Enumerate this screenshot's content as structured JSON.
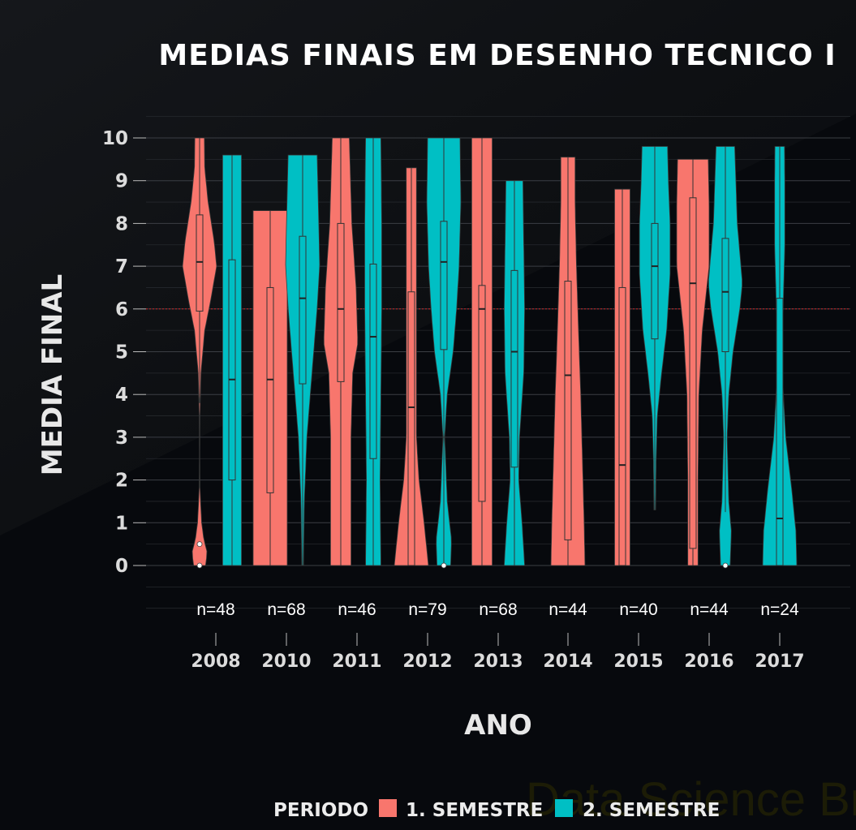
{
  "chart_data": {
    "type": "violin",
    "title": "MEDIAS FINAIS EM DESENHO TECNICO I",
    "xlabel": "ANO",
    "ylabel": "MEDIA FINAL",
    "ylim": [
      0,
      10
    ],
    "yticks": [
      "0",
      "1",
      "2",
      "3",
      "4",
      "5",
      "6",
      "7",
      "8",
      "9",
      "10"
    ],
    "reference_line": {
      "y": 6,
      "color": "#cc2222",
      "style": "dotted"
    },
    "grid": true,
    "legend": {
      "title": "PERIODO",
      "position": "bottom",
      "entries": [
        {
          "label": "1. SEMESTRE",
          "color": "#f8766d"
        },
        {
          "label": "2. SEMESTRE",
          "color": "#00bfc4"
        }
      ]
    },
    "categories": [
      "2008",
      "2010",
      "2011",
      "2012",
      "2013",
      "2014",
      "2015",
      "2016",
      "2017"
    ],
    "counts": [
      "n=48",
      "n=68",
      "n=46",
      "n=79",
      "n=68",
      "n=44",
      "n=40",
      "n=44",
      "n=24"
    ],
    "series": [
      {
        "name": "1. SEMESTRE",
        "groups": [
          {
            "year": "2008",
            "min": 0,
            "max": 10,
            "q1": 5.95,
            "median": 7.1,
            "q3": 8.2,
            "wlow": 3.8,
            "whigh": 10,
            "outliers": [
              0.5,
              0
            ],
            "density": [
              [
                0,
                0.35
              ],
              [
                0.3,
                0.45
              ],
              [
                0.6,
                0.25
              ],
              [
                1,
                0.12
              ],
              [
                1.8,
                0.02
              ],
              [
                2.5,
                0.01
              ],
              [
                3.5,
                0.02
              ],
              [
                4.5,
                0.08
              ],
              [
                5.5,
                0.3
              ],
              [
                6.2,
                0.65
              ],
              [
                7,
                1
              ],
              [
                7.6,
                0.85
              ],
              [
                8.5,
                0.5
              ],
              [
                9.3,
                0.3
              ],
              [
                10,
                0.28
              ]
            ]
          },
          {
            "year": "2010",
            "min": 0,
            "max": 8.3,
            "q1": 1.7,
            "median": 4.35,
            "q3": 6.5,
            "wlow": 0,
            "whigh": 8.3,
            "outliers": [],
            "density": [
              [
                0,
                1
              ],
              [
                3,
                1
              ],
              [
                5,
                1
              ],
              [
                7.5,
                1
              ],
              [
                8,
                1
              ],
              [
                8.3,
                1
              ]
            ]
          },
          {
            "year": "2011",
            "min": 0,
            "max": 10,
            "q1": 4.3,
            "median": 6.0,
            "q3": 8.0,
            "wlow": 0,
            "whigh": 10,
            "outliers": [],
            "density": [
              [
                0,
                0.6
              ],
              [
                3,
                0.6
              ],
              [
                4.5,
                0.7
              ],
              [
                5.2,
                1
              ],
              [
                6.5,
                0.9
              ],
              [
                8,
                0.65
              ],
              [
                10,
                0.5
              ]
            ]
          },
          {
            "year": "2012",
            "min": 0,
            "max": 9.3,
            "q1": 0,
            "median": 3.7,
            "q3": 6.4,
            "wlow": 0,
            "whigh": 9.3,
            "outliers": [],
            "density": [
              [
                0,
                1
              ],
              [
                1,
                0.75
              ],
              [
                2,
                0.45
              ],
              [
                3,
                0.3
              ],
              [
                5,
                0.3
              ],
              [
                7,
                0.3
              ],
              [
                9.3,
                0.3
              ]
            ]
          },
          {
            "year": "2013",
            "min": 0,
            "max": 10,
            "q1": 1.5,
            "median": 6.0,
            "q3": 6.55,
            "wlow": 0,
            "whigh": 10,
            "outliers": [],
            "density": [
              [
                0,
                0.6
              ],
              [
                2,
                0.6
              ],
              [
                4,
                0.6
              ],
              [
                6,
                0.6
              ],
              [
                8,
                0.6
              ],
              [
                10,
                0.6
              ]
            ]
          },
          {
            "year": "2014",
            "min": 0,
            "max": 9.55,
            "q1": 0.6,
            "median": 4.45,
            "q3": 6.65,
            "wlow": 0,
            "whigh": 9.55,
            "outliers": [],
            "density": [
              [
                0,
                1
              ],
              [
                1,
                0.95
              ],
              [
                2.5,
                0.85
              ],
              [
                4,
                0.75
              ],
              [
                5.5,
                0.62
              ],
              [
                7,
                0.5
              ],
              [
                8.5,
                0.42
              ],
              [
                9.55,
                0.42
              ]
            ]
          },
          {
            "year": "2015",
            "min": 0,
            "max": 8.8,
            "q1": 0,
            "median": 2.35,
            "q3": 6.5,
            "wlow": 0,
            "whigh": 8.8,
            "outliers": [],
            "density": [
              [
                0,
                0.45
              ],
              [
                2,
                0.45
              ],
              [
                4,
                0.45
              ],
              [
                6,
                0.45
              ],
              [
                8,
                0.45
              ],
              [
                8.8,
                0.45
              ]
            ]
          },
          {
            "year": "2016",
            "min": 0,
            "max": 9.5,
            "q1": 0.4,
            "median": 6.6,
            "q3": 8.6,
            "wlow": 0,
            "whigh": 9.5,
            "outliers": [],
            "density": [
              [
                0,
                0.3
              ],
              [
                2,
                0.3
              ],
              [
                4,
                0.35
              ],
              [
                5.5,
                0.55
              ],
              [
                7,
                0.95
              ],
              [
                8.5,
                0.95
              ],
              [
                9.5,
                0.9
              ]
            ]
          }
        ]
      },
      {
        "name": "2. SEMESTRE",
        "groups": [
          {
            "year": "2008",
            "min": 0,
            "max": 9.6,
            "q1": 2.0,
            "median": 4.35,
            "q3": 7.15,
            "wlow": 0,
            "whigh": 9.6,
            "outliers": [],
            "density": [
              [
                0,
                0.55
              ],
              [
                2,
                0.55
              ],
              [
                4,
                0.55
              ],
              [
                6,
                0.55
              ],
              [
                8,
                0.55
              ],
              [
                9.6,
                0.55
              ]
            ]
          },
          {
            "year": "2010",
            "min": 0,
            "max": 9.6,
            "q1": 4.25,
            "median": 6.25,
            "q3": 7.7,
            "wlow": 0,
            "whigh": 9.6,
            "outliers": [],
            "density": [
              [
                0,
                0.05
              ],
              [
                1.5,
                0.1
              ],
              [
                3,
                0.25
              ],
              [
                4.5,
                0.55
              ],
              [
                6,
                0.85
              ],
              [
                7,
                1
              ],
              [
                8,
                0.95
              ],
              [
                9.6,
                0.85
              ]
            ]
          },
          {
            "year": "2011",
            "min": 0,
            "max": 10,
            "q1": 2.5,
            "median": 5.35,
            "q3": 7.05,
            "wlow": 0,
            "whigh": 10,
            "outliers": [],
            "density": [
              [
                0,
                0.45
              ],
              [
                2,
                0.4
              ],
              [
                4,
                0.45
              ],
              [
                6,
                0.5
              ],
              [
                8,
                0.5
              ],
              [
                10,
                0.45
              ]
            ]
          },
          {
            "year": "2012",
            "min": 0,
            "max": 10,
            "q1": 5.05,
            "median": 7.1,
            "q3": 8.05,
            "wlow": 0,
            "whigh": 10,
            "outliers": [
              0
            ],
            "density": [
              [
                0,
                0.4
              ],
              [
                0.6,
                0.45
              ],
              [
                1.5,
                0.2
              ],
              [
                3,
                0.05
              ],
              [
                4,
                0.2
              ],
              [
                5,
                0.55
              ],
              [
                6,
                0.75
              ],
              [
                7,
                0.9
              ],
              [
                8.5,
                1
              ],
              [
                10,
                0.95
              ]
            ]
          },
          {
            "year": "2013",
            "min": 0,
            "max": 9.0,
            "q1": 2.3,
            "median": 5.0,
            "q3": 6.9,
            "wlow": 0,
            "whigh": 9.0,
            "outliers": [],
            "density": [
              [
                0,
                0.6
              ],
              [
                1,
                0.45
              ],
              [
                2,
                0.25
              ],
              [
                3,
                0.3
              ],
              [
                4.5,
                0.55
              ],
              [
                6,
                0.6
              ],
              [
                7.5,
                0.55
              ],
              [
                9,
                0.5
              ]
            ]
          },
          {
            "year": "2015",
            "min": 1.3,
            "max": 9.8,
            "q1": 5.3,
            "median": 7.0,
            "q3": 8.0,
            "wlow": 1.3,
            "whigh": 9.8,
            "outliers": [],
            "density": [
              [
                1.3,
                0.05
              ],
              [
                2.5,
                0.08
              ],
              [
                3.5,
                0.15
              ],
              [
                4.5,
                0.4
              ],
              [
                5.5,
                0.7
              ],
              [
                6.8,
                0.9
              ],
              [
                8,
                0.9
              ],
              [
                9,
                0.8
              ],
              [
                9.8,
                0.75
              ]
            ]
          },
          {
            "year": "2016",
            "min": 0,
            "max": 9.8,
            "q1": 5.0,
            "median": 6.4,
            "q3": 7.65,
            "wlow": 1.25,
            "whigh": 9.8,
            "outliers": [
              0
            ],
            "density": [
              [
                0,
                0.28
              ],
              [
                0.8,
                0.35
              ],
              [
                1.5,
                0.2
              ],
              [
                3,
                0.1
              ],
              [
                4,
                0.2
              ],
              [
                5,
                0.45
              ],
              [
                6,
                0.85
              ],
              [
                6.6,
                1
              ],
              [
                8,
                0.7
              ],
              [
                9.8,
                0.55
              ]
            ]
          },
          {
            "year": "2017",
            "min": 0,
            "max": 9.8,
            "q1": 0,
            "median": 1.1,
            "q3": 6.25,
            "wlow": 0,
            "whigh": 9.8,
            "outliers": [],
            "density": [
              [
                0,
                1
              ],
              [
                0.8,
                0.95
              ],
              [
                1.8,
                0.7
              ],
              [
                3,
                0.35
              ],
              [
                4.5,
                0.15
              ],
              [
                6,
                0.2
              ],
              [
                7.5,
                0.3
              ],
              [
                9,
                0.3
              ],
              [
                9.8,
                0.28
              ]
            ]
          }
        ]
      }
    ]
  },
  "watermark": "Data Science Broon",
  "colors": {
    "background": "#07090d",
    "grid": "#3a3d42",
    "box_line": "#333333"
  }
}
